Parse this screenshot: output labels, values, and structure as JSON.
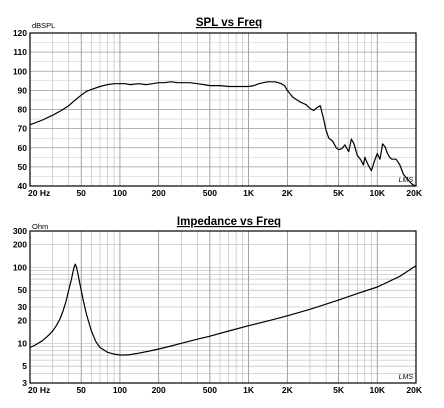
{
  "chart_data": [
    {
      "type": "line",
      "title": "SPL vs Freq",
      "ylabel": "dBSPL",
      "xscale": "log",
      "xlim": [
        20,
        20000
      ],
      "ylim": [
        40,
        120
      ],
      "grid": true,
      "yticks": [
        40,
        50,
        60,
        70,
        80,
        90,
        100,
        110,
        120
      ],
      "xtick_labels": [
        {
          "value": 20,
          "label": "20 Hz"
        },
        {
          "value": 50,
          "label": "50"
        },
        {
          "value": 100,
          "label": "100"
        },
        {
          "value": 200,
          "label": "200"
        },
        {
          "value": 500,
          "label": "500"
        },
        {
          "value": 1000,
          "label": "1K"
        },
        {
          "value": 2000,
          "label": "2K"
        },
        {
          "value": 5000,
          "label": "5K"
        },
        {
          "value": 10000,
          "label": "10K"
        },
        {
          "value": 20000,
          "label": "20K"
        }
      ],
      "watermark": "LMS",
      "series": [
        {
          "x": [
            20,
            25,
            30,
            35,
            40,
            45,
            50,
            55,
            60,
            70,
            80,
            90,
            100,
            110,
            120,
            140,
            160,
            180,
            200,
            220,
            250,
            280,
            300,
            350,
            400,
            450,
            500,
            600,
            700,
            800,
            900,
            1000,
            1100,
            1200,
            1300,
            1400,
            1500,
            1600,
            1700,
            1800,
            1900,
            2000,
            2200,
            2500,
            2800,
            3000,
            3200,
            3400,
            3600,
            3800,
            4000,
            4200,
            4500,
            4800,
            5000,
            5300,
            5600,
            6000,
            6300,
            6600,
            7000,
            7400,
            7800,
            8000,
            8500,
            9000,
            9500,
            10000,
            10500,
            11000,
            11500,
            12000,
            12500,
            13000,
            14000,
            15000,
            16000,
            17000,
            18000,
            19000,
            20000
          ],
          "y": [
            72,
            74.5,
            77,
            79.5,
            82,
            85,
            87.5,
            89.5,
            90.5,
            92,
            93,
            93.5,
            93.5,
            93.5,
            93,
            93.5,
            93,
            93.5,
            94,
            94,
            94.5,
            94,
            94,
            94,
            93.5,
            93,
            92.5,
            92.5,
            92,
            92,
            92,
            92,
            92.5,
            93.5,
            94,
            94.5,
            94.5,
            94.5,
            94,
            93.5,
            92.5,
            90,
            86.5,
            84,
            82.5,
            80.5,
            79.5,
            81,
            82,
            76,
            69,
            65,
            63.5,
            60,
            59,
            59.5,
            61.5,
            58,
            64.5,
            62,
            56,
            54,
            51,
            55,
            51,
            48,
            53,
            57,
            54,
            62,
            60.5,
            57,
            55,
            54,
            54,
            51,
            46,
            44,
            42,
            40.5,
            40
          ]
        }
      ]
    },
    {
      "type": "line",
      "title": "Impedance vs Freq",
      "ylabel": "Ohm",
      "xscale": "log",
      "yscale": "log",
      "xlim": [
        20,
        20000
      ],
      "ylim": [
        3,
        300
      ],
      "grid": true,
      "yticks": [
        3,
        5,
        10,
        20,
        30,
        50,
        100,
        200,
        300
      ],
      "ytick_labels": [
        "3",
        "5",
        "10",
        "20",
        "30",
        "50",
        "100",
        "200",
        "300"
      ],
      "xtick_labels": [
        {
          "value": 20,
          "label": "20 Hz"
        },
        {
          "value": 50,
          "label": "50"
        },
        {
          "value": 100,
          "label": "100"
        },
        {
          "value": 200,
          "label": "200"
        },
        {
          "value": 500,
          "label": "500"
        },
        {
          "value": 1000,
          "label": "1K"
        },
        {
          "value": 2000,
          "label": "2K"
        },
        {
          "value": 5000,
          "label": "5K"
        },
        {
          "value": 10000,
          "label": "10K"
        },
        {
          "value": 20000,
          "label": "20K"
        }
      ],
      "watermark": "LMS",
      "series": [
        {
          "x": [
            20,
            22,
            25,
            28,
            30,
            32,
            34,
            36,
            38,
            40,
            42,
            43,
            44,
            45,
            46,
            47,
            48,
            50,
            52,
            55,
            60,
            65,
            70,
            80,
            90,
            100,
            110,
            120,
            140,
            170,
            200,
            250,
            300,
            400,
            500,
            700,
            1000,
            1500,
            2000,
            3000,
            5000,
            7000,
            10000,
            15000,
            20000
          ],
          "y": [
            8.8,
            9.5,
            10.8,
            12.8,
            14.5,
            17,
            20.5,
            26,
            35,
            50,
            70,
            85,
            100,
            110,
            100,
            85,
            70,
            50,
            36,
            24,
            14.5,
            10.5,
            8.8,
            7.6,
            7.2,
            7.0,
            7.0,
            7.1,
            7.4,
            7.9,
            8.4,
            9.2,
            10,
            11.3,
            12.4,
            14.5,
            17,
            20.2,
            23,
            28,
            37,
            45,
            55,
            76,
            105
          ]
        }
      ]
    }
  ]
}
